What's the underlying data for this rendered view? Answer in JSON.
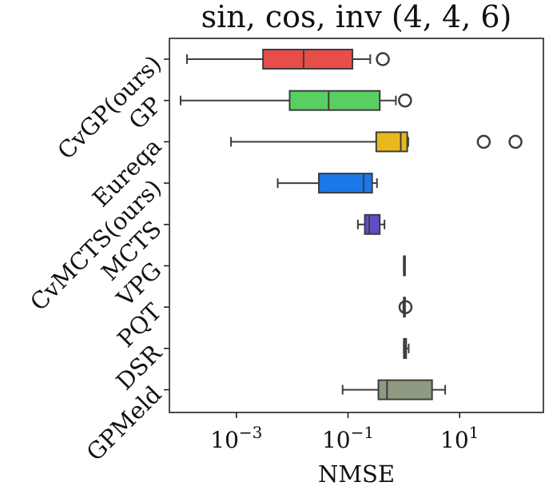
{
  "chart_data": {
    "type": "boxplot",
    "orientation": "horizontal",
    "title": "sin, cos, inv (4, 4, 6)",
    "xlabel": "NMSE",
    "ylabel": "",
    "xscale": "log",
    "xlim_log10": [
      -4.2,
      2.5
    ],
    "x_ticks": [
      {
        "exp": -3,
        "base": "10",
        "sup": "−3"
      },
      {
        "exp": -1,
        "base": "10",
        "sup": "−1"
      },
      {
        "exp": 1,
        "base": "10",
        "sup": "1"
      }
    ],
    "grid": false,
    "series": [
      {
        "name": "CvGP(ours)",
        "color": "#e84d4a",
        "whisker_low": 0.00013,
        "q1": 0.003,
        "median": 0.016,
        "q3": 0.12,
        "whisker_high": 0.25,
        "outliers": [
          0.42
        ]
      },
      {
        "name": "GP",
        "color": "#59cf63",
        "whisker_low": 0.0001,
        "q1": 0.009,
        "median": 0.045,
        "q3": 0.37,
        "whisker_high": 0.72,
        "outliers": [
          1.05
        ]
      },
      {
        "name": "Eureqa",
        "color": "#e9b81f",
        "whisker_low": 0.0008,
        "q1": 0.32,
        "median": 0.88,
        "q3": 1.15,
        "whisker_high": 1.2,
        "outliers": [
          27.0,
          100.0
        ]
      },
      {
        "name": "CvMCTS(ours)",
        "color": "#1c78e8",
        "whisker_low": 0.0055,
        "q1": 0.03,
        "median": 0.19,
        "q3": 0.27,
        "whisker_high": 0.33,
        "outliers": []
      },
      {
        "name": "MCTS",
        "color": "#5d4ec9",
        "whisker_low": 0.15,
        "q1": 0.2,
        "median": 0.24,
        "q3": 0.37,
        "whisker_high": 0.45,
        "outliers": []
      },
      {
        "name": "VPG",
        "color": "#7b8c8e",
        "whisker_low": 1.0,
        "q1": 1.0,
        "median": 1.0,
        "q3": 1.03,
        "whisker_high": 1.03,
        "outliers": []
      },
      {
        "name": "PQT",
        "color": "#7b8c8e",
        "whisker_low": 0.98,
        "q1": 1.0,
        "median": 1.0,
        "q3": 1.02,
        "whisker_high": 1.02,
        "outliers": [
          1.07
        ]
      },
      {
        "name": "DSR",
        "color": "#7b8c8e",
        "whisker_low": 1.0,
        "q1": 1.0,
        "median": 1.03,
        "q3": 1.1,
        "whisker_high": 1.22,
        "outliers": []
      },
      {
        "name": "GPMeld",
        "color": "#8f9a83",
        "whisker_low": 0.08,
        "q1": 0.35,
        "median": 0.5,
        "q3": 3.2,
        "whisker_high": 5.5,
        "outliers": []
      }
    ]
  }
}
